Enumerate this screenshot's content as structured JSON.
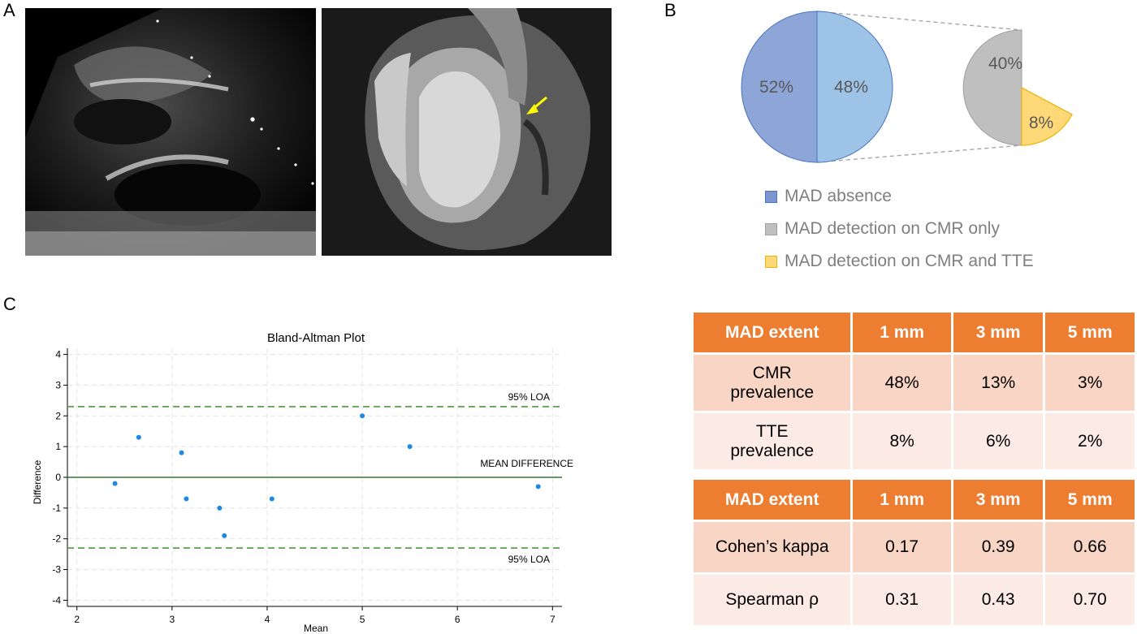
{
  "panels": {
    "a": "A",
    "b": "B",
    "c": "C"
  },
  "images": {
    "echo": "echocardiography-image",
    "cmr": "cmr-image"
  },
  "colors": {
    "absence": "#8ea5d8",
    "absence_dark": "#7e96cf",
    "cmr_only": "#bfbfbf",
    "cmr_tte": "#ffd878",
    "header": "#ed7d31",
    "row_dark": "#f8d5c5",
    "row_light": "#fcebe4",
    "arrow": "#ffff00",
    "point": "#1e88e5",
    "loa": "#4a9a3a"
  },
  "pie": {
    "main": [
      {
        "label": "52%",
        "value": 52
      },
      {
        "label": "48%",
        "value": 48
      }
    ],
    "sub": [
      {
        "label": "40%",
        "value": 40
      },
      {
        "label": "8%",
        "value": 8
      }
    ]
  },
  "legend": [
    "MAD absence",
    "MAD detection on CMR only",
    "MAD detection on CMR and TTE"
  ],
  "chart_data": {
    "type": "scatter",
    "title": "Bland-Altman Plot",
    "xlabel": "Mean",
    "ylabel": "Difference",
    "xlim": [
      1.9,
      7.1
    ],
    "ylim": [
      -4.2,
      4.2
    ],
    "xticks": [
      2,
      3,
      4,
      5,
      6,
      7
    ],
    "yticks": [
      4,
      3,
      2,
      1,
      0,
      -1,
      -2,
      -3,
      -4
    ],
    "points": [
      {
        "x": 2.4,
        "y": -0.2
      },
      {
        "x": 2.65,
        "y": 1.3
      },
      {
        "x": 3.1,
        "y": 0.8
      },
      {
        "x": 3.15,
        "y": -0.7
      },
      {
        "x": 3.5,
        "y": -1.0
      },
      {
        "x": 3.55,
        "y": -1.9
      },
      {
        "x": 4.05,
        "y": -0.7
      },
      {
        "x": 5.0,
        "y": 2.0
      },
      {
        "x": 5.5,
        "y": 1.0
      },
      {
        "x": 6.85,
        "y": -0.3
      }
    ],
    "mean_difference": 0,
    "loa_upper": 2.3,
    "loa_lower": -2.3,
    "annotations": {
      "loa_upper": "95% LOA",
      "mean": "MEAN DIFFERENCE",
      "loa_lower": "95% LOA"
    },
    "grid": true
  },
  "table1": {
    "headers": [
      "MAD extent",
      "1 mm",
      "3 mm",
      "5 mm"
    ],
    "rows": [
      {
        "label1": "CMR",
        "label2": "prevalence",
        "v": [
          "48%",
          "13%",
          "3%"
        ]
      },
      {
        "label1": "TTE",
        "label2": "prevalence",
        "v": [
          "8%",
          "6%",
          "2%"
        ]
      }
    ]
  },
  "table2": {
    "headers": [
      "MAD extent",
      "1 mm",
      "3 mm",
      "5 mm"
    ],
    "rows": [
      {
        "label": "Cohen’s kappa",
        "v": [
          "0.17",
          "0.39",
          "0.66"
        ]
      },
      {
        "label": "Spearman ρ",
        "v": [
          "0.31",
          "0.43",
          "0.70"
        ]
      }
    ]
  }
}
